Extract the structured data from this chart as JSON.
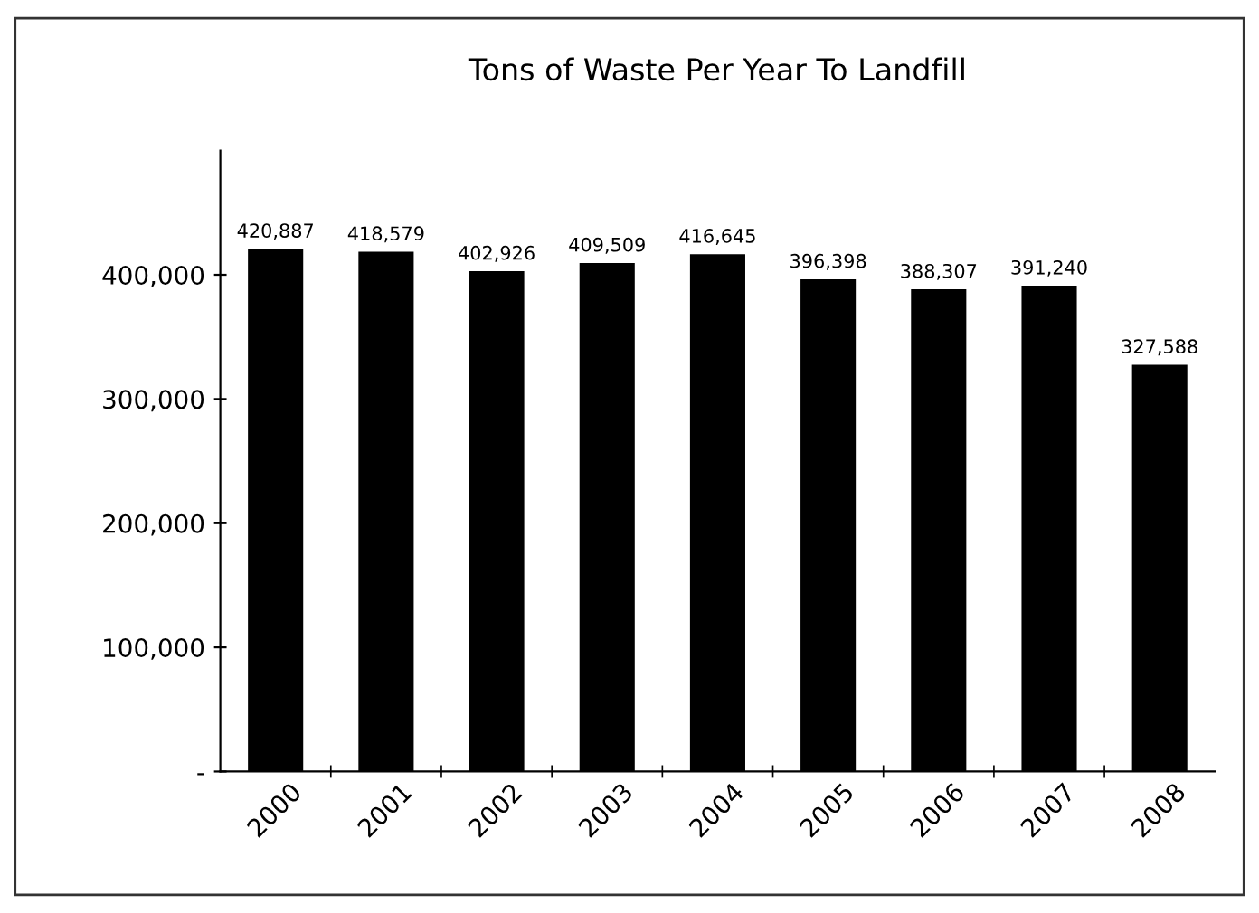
{
  "chart_data": {
    "type": "bar",
    "title": "Tons of Waste Per Year To Landfill",
    "categories": [
      "2000",
      "2001",
      "2002",
      "2003",
      "2004",
      "2005",
      "2006",
      "2007",
      "2008"
    ],
    "values": [
      420887,
      418579,
      402926,
      409509,
      416645,
      396398,
      388307,
      391240,
      327588
    ],
    "value_labels": [
      "420,887",
      "418,579",
      "402,926",
      "409,509",
      "416,645",
      "396,398",
      "388,307",
      "391,240",
      "327,588"
    ],
    "color": "#000000",
    "ylim": [
      0,
      500000
    ],
    "yticks": [
      {
        "value": 0,
        "label": "-"
      },
      {
        "value": 100000,
        "label": "100,000"
      },
      {
        "value": 200000,
        "label": "200,000"
      },
      {
        "value": 300000,
        "label": "300,000"
      },
      {
        "value": 400000,
        "label": "400,000"
      }
    ],
    "grid": false,
    "legend": false
  }
}
